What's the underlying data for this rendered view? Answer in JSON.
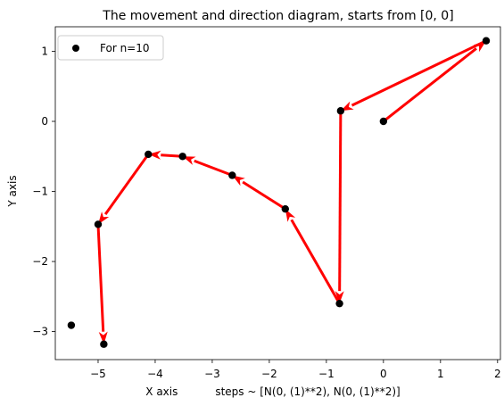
{
  "chart_data": {
    "type": "scatter",
    "title": "The movement and direction diagram, starts from [0, 0]",
    "xlabel": "X axis           steps ~ [N(0, (1)**2), N(0, (1)**2)]",
    "ylabel": "Y axis",
    "xlim": [
      -5.75,
      2.05
    ],
    "ylim": [
      -3.4,
      1.35
    ],
    "x_ticks": [
      -5,
      -4,
      -3,
      -2,
      -1,
      0,
      1,
      2
    ],
    "y_ticks": [
      -3,
      -2,
      -1,
      0,
      1
    ],
    "x_tick_labels": [
      "−5",
      "−4",
      "−3",
      "−2",
      "−1",
      "0",
      "1",
      "2"
    ],
    "y_tick_labels": [
      "−3",
      "−2",
      "−1",
      "0",
      "1"
    ],
    "grid": false,
    "legend": {
      "position": "upper-left",
      "entries": [
        "For n=10"
      ]
    },
    "series": [
      {
        "name": "For n=10",
        "marker_color": "#000000",
        "x": [
          0.0,
          1.8,
          -0.75,
          -0.77,
          -1.72,
          -2.65,
          -3.52,
          -4.12,
          -5.0,
          -4.9,
          -5.47
        ],
        "y": [
          0.0,
          1.15,
          0.15,
          -2.6,
          -1.25,
          -0.77,
          -0.5,
          -0.47,
          -1.47,
          -3.18,
          -2.91
        ]
      }
    ],
    "arrows": {
      "color": "#ff0000",
      "segments": [
        {
          "from": [
            0.0,
            0.0
          ],
          "to": [
            1.8,
            1.15
          ]
        },
        {
          "from": [
            1.8,
            1.15
          ],
          "to": [
            -0.75,
            0.15
          ]
        },
        {
          "from": [
            -0.75,
            0.15
          ],
          "to": [
            -0.77,
            -2.6
          ]
        },
        {
          "from": [
            -0.77,
            -2.6
          ],
          "to": [
            -1.72,
            -1.25
          ]
        },
        {
          "from": [
            -1.72,
            -1.25
          ],
          "to": [
            -2.65,
            -0.77
          ]
        },
        {
          "from": [
            -2.65,
            -0.77
          ],
          "to": [
            -3.52,
            -0.5
          ]
        },
        {
          "from": [
            -3.52,
            -0.5
          ],
          "to": [
            -4.12,
            -0.47
          ]
        },
        {
          "from": [
            -4.12,
            -0.47
          ],
          "to": [
            -5.0,
            -1.47
          ]
        },
        {
          "from": [
            -5.0,
            -1.47
          ],
          "to": [
            -4.9,
            -3.18
          ]
        }
      ]
    }
  }
}
